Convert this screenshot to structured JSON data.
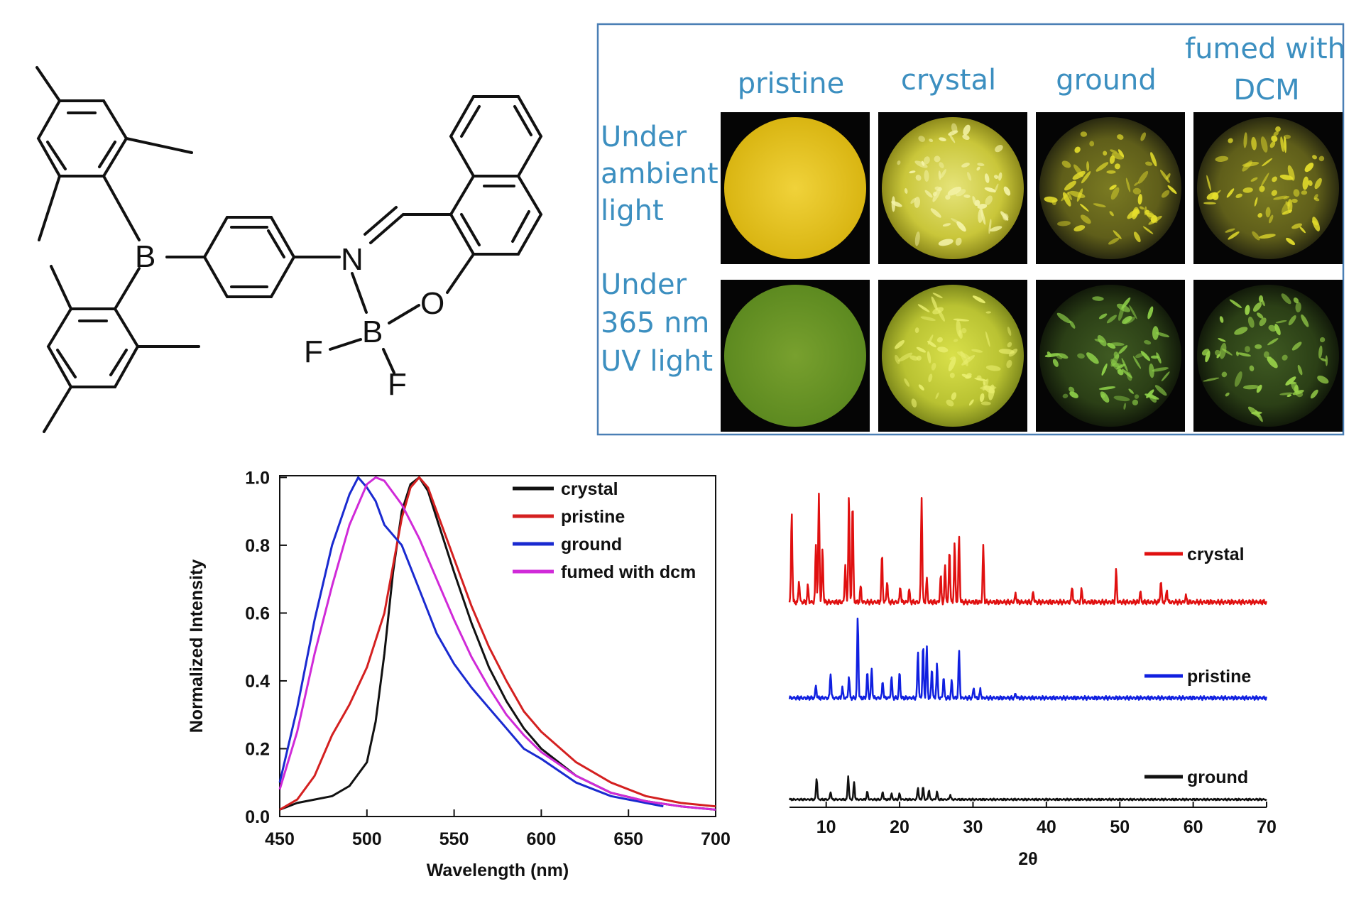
{
  "molecule": {
    "atoms": [
      "B",
      "N",
      "O",
      "B",
      "F",
      "F"
    ]
  },
  "photo_panel": {
    "columns": [
      "pristine",
      "crystal",
      "ground",
      "fumed with DCM"
    ],
    "rows": [
      {
        "label_lines": [
          "Under",
          "ambient",
          "light"
        ]
      },
      {
        "label_lines": [
          "Under",
          "365 nm",
          "UV light"
        ]
      }
    ],
    "colors": {
      "border": "#4a7fb5",
      "title_text": "#3c8fc0",
      "ambient_pristine": "#e2c11a",
      "ambient_crystal": "#d8d84a",
      "ambient_ground": "#b8b430",
      "uv_pristine": "#6d9628",
      "uv_crystal": "#c9d23a",
      "uv_ground": "#79a84a"
    }
  },
  "chart_data": [
    {
      "type": "line",
      "title": "",
      "xlabel": "Wavelength (nm)",
      "ylabel": "Normalized Intensity",
      "xlim": [
        450,
        700
      ],
      "ylim": [
        0,
        1.0
      ],
      "xticks": [
        450,
        500,
        550,
        600,
        650,
        700
      ],
      "yticks": [
        "0.0",
        "0.2",
        "0.4",
        "0.6",
        "0.8",
        "1.0"
      ],
      "legend_position": "top-right",
      "series": [
        {
          "name": "crystal",
          "color": "#111111",
          "x": [
            450,
            460,
            470,
            480,
            490,
            500,
            505,
            510,
            515,
            520,
            525,
            530,
            535,
            540,
            550,
            560,
            570,
            580,
            590,
            600,
            620,
            640,
            660,
            680,
            700
          ],
          "y": [
            0.02,
            0.04,
            0.05,
            0.06,
            0.09,
            0.16,
            0.28,
            0.48,
            0.72,
            0.9,
            0.98,
            1.0,
            0.96,
            0.88,
            0.72,
            0.57,
            0.44,
            0.34,
            0.26,
            0.2,
            0.12,
            0.07,
            0.045,
            0.03,
            0.02
          ]
        },
        {
          "name": "pristine",
          "color": "#d42020",
          "x": [
            450,
            460,
            470,
            480,
            490,
            500,
            510,
            515,
            520,
            525,
            530,
            535,
            540,
            550,
            560,
            570,
            580,
            590,
            600,
            620,
            640,
            660,
            680,
            700
          ],
          "y": [
            0.02,
            0.05,
            0.12,
            0.24,
            0.33,
            0.44,
            0.6,
            0.74,
            0.88,
            0.97,
            1.0,
            0.97,
            0.9,
            0.76,
            0.62,
            0.5,
            0.4,
            0.31,
            0.25,
            0.16,
            0.1,
            0.06,
            0.04,
            0.03
          ]
        },
        {
          "name": "ground",
          "color": "#1a2ad0",
          "x": [
            450,
            460,
            470,
            480,
            490,
            495,
            500,
            505,
            510,
            520,
            530,
            540,
            550,
            560,
            570,
            580,
            590,
            600,
            620,
            640,
            660,
            670
          ],
          "y": [
            0.1,
            0.32,
            0.58,
            0.8,
            0.95,
            1.0,
            0.97,
            0.93,
            0.86,
            0.8,
            0.67,
            0.54,
            0.45,
            0.38,
            0.32,
            0.26,
            0.2,
            0.17,
            0.1,
            0.06,
            0.04,
            0.03
          ]
        },
        {
          "name": "fumed with dcm",
          "color": "#d02ad8",
          "x": [
            450,
            460,
            470,
            480,
            490,
            500,
            505,
            510,
            520,
            530,
            540,
            550,
            560,
            570,
            580,
            590,
            600,
            620,
            640,
            660,
            680,
            700
          ],
          "y": [
            0.08,
            0.25,
            0.48,
            0.68,
            0.86,
            0.98,
            1.0,
            0.99,
            0.92,
            0.82,
            0.7,
            0.58,
            0.47,
            0.38,
            0.3,
            0.24,
            0.19,
            0.12,
            0.07,
            0.045,
            0.03,
            0.02
          ]
        }
      ]
    },
    {
      "type": "line",
      "title": "",
      "xlabel": "2θ",
      "ylabel": "",
      "xlim": [
        5,
        70
      ],
      "xticks": [
        10,
        20,
        30,
        40,
        50,
        60,
        70
      ],
      "yaxis_visible": false,
      "legend_position": "right",
      "series": [
        {
          "name": "crystal",
          "color": "#e01010",
          "peaks": [
            [
              5.3,
              0.85
            ],
            [
              6.3,
              0.2
            ],
            [
              7.5,
              0.15
            ],
            [
              8.6,
              0.55
            ],
            [
              9.0,
              1.0
            ],
            [
              9.5,
              0.5
            ],
            [
              12.6,
              0.35
            ],
            [
              13.1,
              1.0
            ],
            [
              13.6,
              0.95
            ],
            [
              14.7,
              0.15
            ],
            [
              17.6,
              0.45
            ],
            [
              18.3,
              0.2
            ],
            [
              20.1,
              0.15
            ],
            [
              21.3,
              0.12
            ],
            [
              23.0,
              1.0
            ],
            [
              23.7,
              0.22
            ],
            [
              25.6,
              0.25
            ],
            [
              26.2,
              0.35
            ],
            [
              26.8,
              0.5
            ],
            [
              27.5,
              0.55
            ],
            [
              28.1,
              0.62
            ],
            [
              31.4,
              0.52
            ],
            [
              35.8,
              0.08
            ],
            [
              38.2,
              0.1
            ],
            [
              43.5,
              0.15
            ],
            [
              44.8,
              0.12
            ],
            [
              49.5,
              0.3
            ],
            [
              52.8,
              0.1
            ],
            [
              55.6,
              0.2
            ],
            [
              56.4,
              0.12
            ],
            [
              59.0,
              0.06
            ]
          ]
        },
        {
          "name": "pristine",
          "color": "#1020e0",
          "peaks": [
            [
              8.6,
              0.15
            ],
            [
              10.6,
              0.3
            ],
            [
              12.2,
              0.12
            ],
            [
              13.1,
              0.25
            ],
            [
              14.3,
              0.95
            ],
            [
              15.6,
              0.3
            ],
            [
              16.2,
              0.35
            ],
            [
              17.7,
              0.2
            ],
            [
              18.9,
              0.25
            ],
            [
              20.0,
              0.3
            ],
            [
              22.5,
              0.55
            ],
            [
              23.2,
              0.62
            ],
            [
              23.7,
              0.6
            ],
            [
              24.4,
              0.35
            ],
            [
              25.1,
              0.4
            ],
            [
              26.0,
              0.25
            ],
            [
              27.1,
              0.2
            ],
            [
              28.1,
              0.55
            ],
            [
              30.1,
              0.12
            ],
            [
              31.0,
              0.1
            ],
            [
              35.8,
              0.05
            ]
          ]
        },
        {
          "name": "ground",
          "color": "#111111",
          "peaks": [
            [
              8.7,
              0.55
            ],
            [
              10.6,
              0.2
            ],
            [
              13.0,
              0.6
            ],
            [
              13.8,
              0.45
            ],
            [
              15.6,
              0.2
            ],
            [
              17.7,
              0.2
            ],
            [
              18.9,
              0.15
            ],
            [
              20.0,
              0.15
            ],
            [
              22.5,
              0.3
            ],
            [
              23.2,
              0.32
            ],
            [
              24.0,
              0.25
            ],
            [
              25.1,
              0.2
            ],
            [
              26.9,
              0.12
            ]
          ]
        }
      ]
    }
  ]
}
